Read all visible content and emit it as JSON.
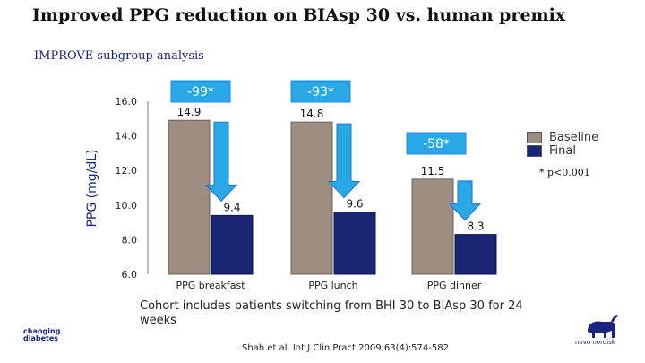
{
  "slide": {
    "title": "Improved PPG reduction on BIAsp 30 vs. human premix",
    "subtitle": "IMPROVE subgroup analysis",
    "footnote": "* p<0.001",
    "note": "Cohort includes patients switching from BHI 30 to BIAsp 30 for 24 weeks",
    "citation": "Shah et al. Int J Clin Pract 2009;63(4):574-582",
    "logo_left_lines": [
      "changing",
      "diabetes"
    ],
    "logo_right_text": "novo nordisk"
  },
  "colors": {
    "baseline": "#9c8d80",
    "final": "#1a2573",
    "arrow": "#2aa8e6",
    "callout": "#2aa8e6"
  },
  "chart_data": {
    "type": "bar",
    "ylabel": "PPG (mg/dL)",
    "ylim": [
      6.0,
      16.0
    ],
    "yticks": [
      "6.0",
      "8.0",
      "10.0",
      "12.0",
      "14.0",
      "16.0"
    ],
    "categories": [
      "PPG breakfast",
      "PPG lunch",
      "PPG dinner"
    ],
    "series": [
      {
        "name": "Baseline",
        "values": [
          14.9,
          14.8,
          11.5
        ],
        "labels": [
          "14.9",
          "14.8",
          "11.5"
        ]
      },
      {
        "name": "Final",
        "values": [
          9.4,
          9.6,
          8.3
        ],
        "labels": [
          "9.4",
          "9.6",
          "8.3"
        ]
      }
    ],
    "annotations": [
      "-99*",
      "-93*",
      "-58*"
    ],
    "legend_position": "right",
    "grid": false
  }
}
